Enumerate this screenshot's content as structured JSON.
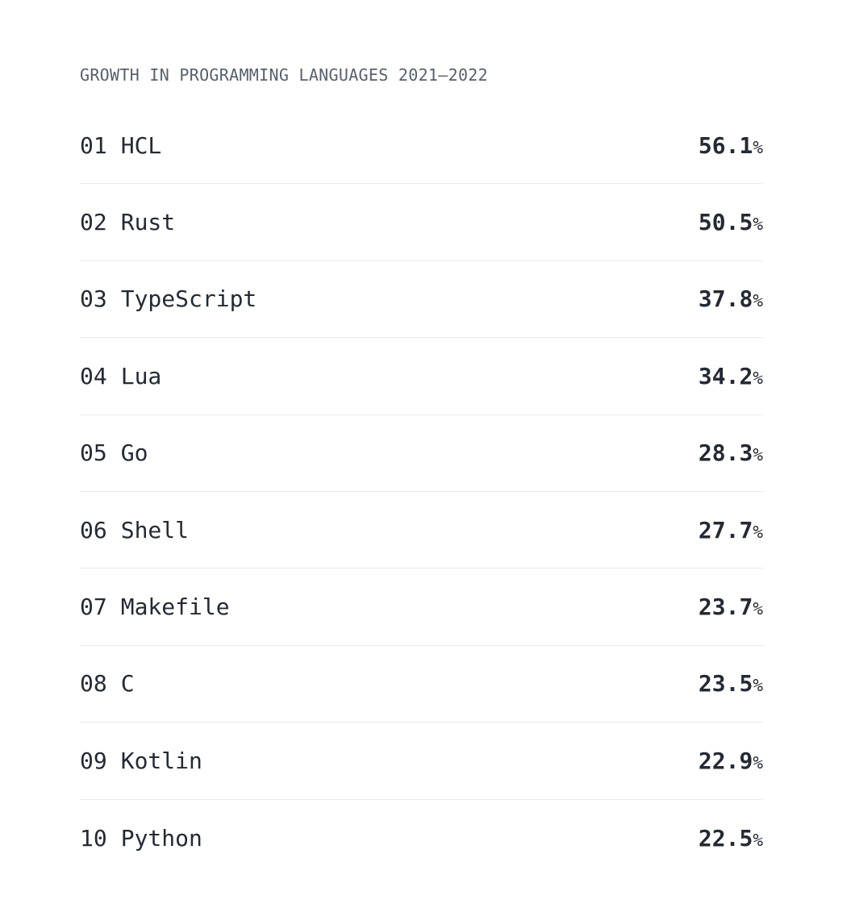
{
  "page": {
    "background": "#ffffff",
    "text_color": "#242a33",
    "muted_color": "#57606a",
    "divider_color": "#e9e9eb"
  },
  "header": {
    "title": "GROWTH IN PROGRAMMING LANGUAGES 2021–2022"
  },
  "chart_data": {
    "type": "table",
    "title": "GROWTH IN PROGRAMMING LANGUAGES 2021–2022",
    "columns": [
      "rank",
      "language",
      "growth_pct"
    ],
    "unit": "%",
    "value_format": "one_decimal",
    "rows": [
      {
        "rank": "01",
        "language": "HCL",
        "growth_pct": 56.1
      },
      {
        "rank": "02",
        "language": "Rust",
        "growth_pct": 50.5
      },
      {
        "rank": "03",
        "language": "TypeScript",
        "growth_pct": 37.8
      },
      {
        "rank": "04",
        "language": "Lua",
        "growth_pct": 34.2
      },
      {
        "rank": "05",
        "language": "Go",
        "growth_pct": 28.3
      },
      {
        "rank": "06",
        "language": "Shell",
        "growth_pct": 27.7
      },
      {
        "rank": "07",
        "language": "Makefile",
        "growth_pct": 23.7
      },
      {
        "rank": "08",
        "language": "C",
        "growth_pct": 23.5
      },
      {
        "rank": "09",
        "language": "Kotlin",
        "growth_pct": 22.9
      },
      {
        "rank": "10",
        "language": "Python",
        "growth_pct": 22.5
      }
    ]
  }
}
